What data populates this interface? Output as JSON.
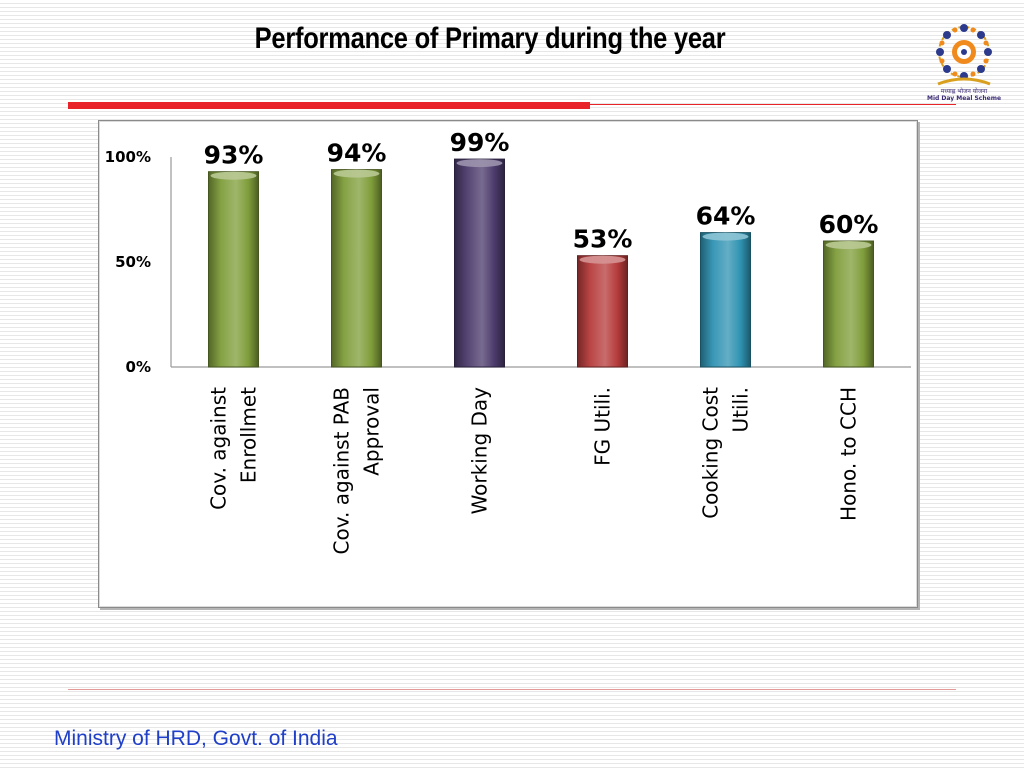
{
  "slide": {
    "title": "Performance of Primary during the year",
    "footer": "Ministry of HRD, Govt. of India"
  },
  "logo": {
    "icon": "mid-day-meal-scheme-logo",
    "caption_hindi": "मध्याह्न भोजन योजना",
    "caption_english": "Mid Day Meal Scheme"
  },
  "colors": {
    "title_rule": "#e8232a",
    "footer_text": "#1f3fc8",
    "green": "#7f9d3a",
    "purple": "#4b3a6b",
    "red": "#b53b3b",
    "blue": "#2f93b2"
  },
  "chart_data": {
    "type": "bar",
    "title": "",
    "xlabel": "",
    "ylabel": "",
    "ylim": [
      0,
      100
    ],
    "yticks": [
      0,
      50,
      100
    ],
    "ytick_labels": [
      "0%",
      "50%",
      "100%"
    ],
    "grid": false,
    "legend": "none",
    "categories": [
      [
        "Cov. against",
        "Enrollmet"
      ],
      [
        "Cov. against PAB",
        "Approval"
      ],
      [
        "Working Day"
      ],
      [
        "FG Utili."
      ],
      [
        "Cooking Cost",
        "Utili."
      ],
      [
        "Hono. to CCH"
      ]
    ],
    "values": [
      93,
      94,
      99,
      53,
      64,
      60
    ],
    "value_labels": [
      "93%",
      "94%",
      "99%",
      "53%",
      "64%",
      "60%"
    ],
    "bar_colors": [
      "#7f9d3a",
      "#7f9d3a",
      "#4b3a6b",
      "#b53b3b",
      "#2f93b2",
      "#7f9d3a"
    ]
  }
}
